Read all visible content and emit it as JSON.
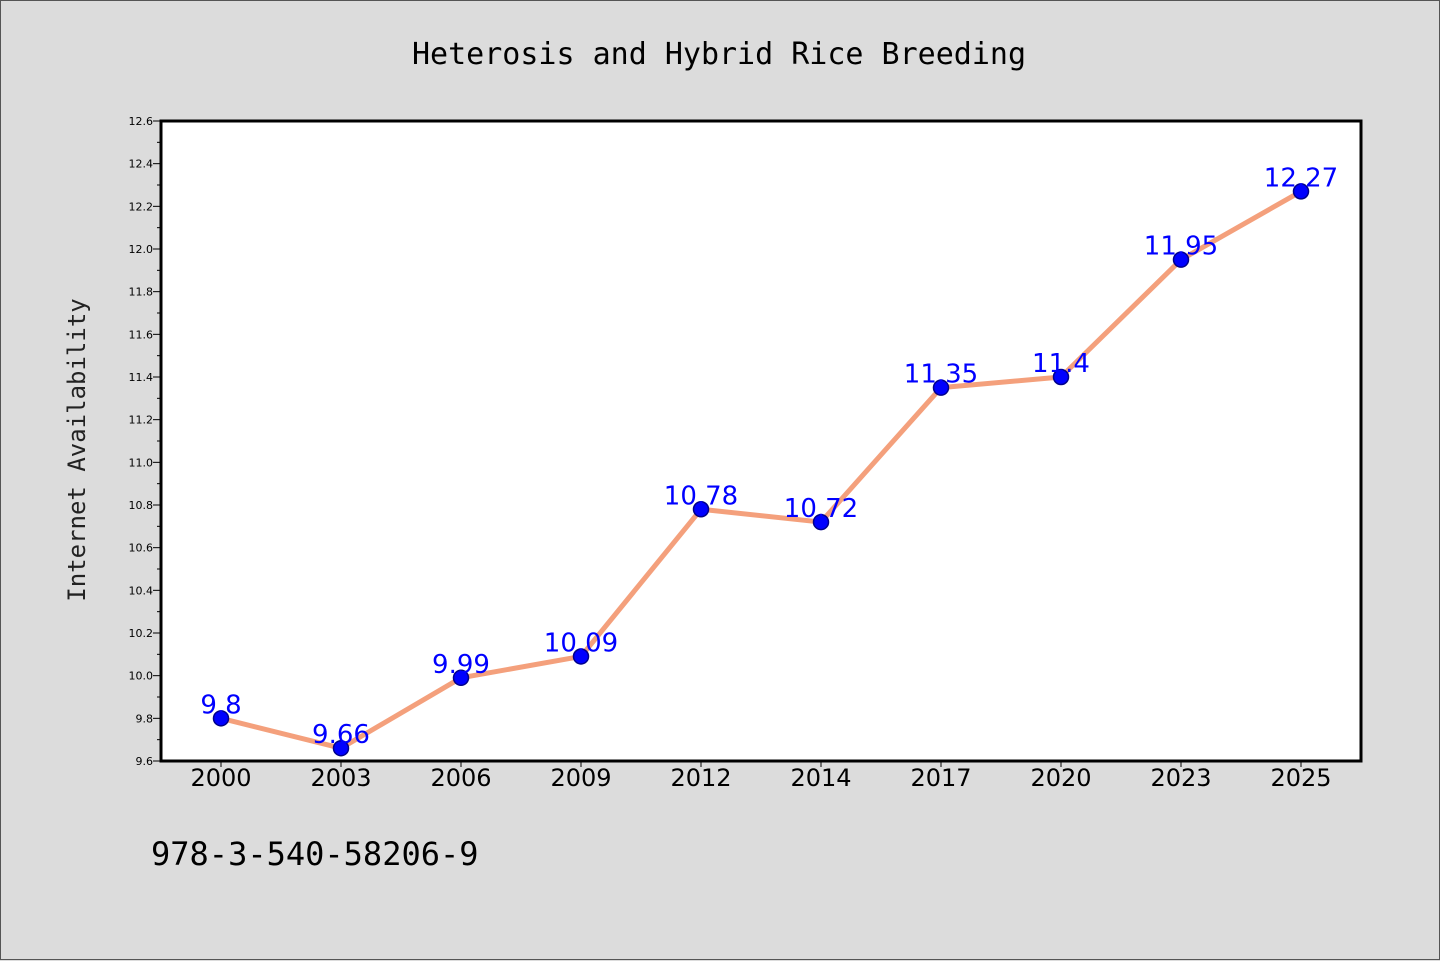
{
  "footer": {
    "code": "978-3-540-58206-9"
  },
  "chart_data": {
    "type": "line",
    "title": "Heterosis and Hybrid Rice Breeding",
    "xlabel": "",
    "ylabel": "Internet Availability",
    "categories": [
      "2000",
      "2003",
      "2006",
      "2009",
      "2012",
      "2014",
      "2017",
      "2020",
      "2023",
      "2025"
    ],
    "series": [
      {
        "values": [
          9.8,
          9.66,
          9.99,
          10.09,
          10.78,
          10.72,
          11.35,
          11.4,
          11.95,
          12.27
        ],
        "data_labels": [
          "9.8",
          "9.66",
          "9.99",
          "10.09",
          "10.78",
          "10.72",
          "11.35",
          "11.4",
          "11.95",
          "12.27"
        ]
      }
    ],
    "ylim": [
      9.6,
      12.6
    ],
    "yticks": [
      "9.6",
      "9.8",
      "10.0",
      "10.2",
      "10.4",
      "10.6",
      "10.8",
      "11.0",
      "11.2",
      "11.4",
      "11.6",
      "11.8",
      "12.0",
      "12.2",
      "12.4",
      "12.6"
    ],
    "grid": false,
    "legend": "none",
    "colors": {
      "line": "#f4a07c",
      "marker": "#0000ff",
      "marker_edge": "#00008b",
      "label": "#0000ff",
      "background": "#dcdcdc",
      "plot_background": "#ffffff"
    }
  }
}
